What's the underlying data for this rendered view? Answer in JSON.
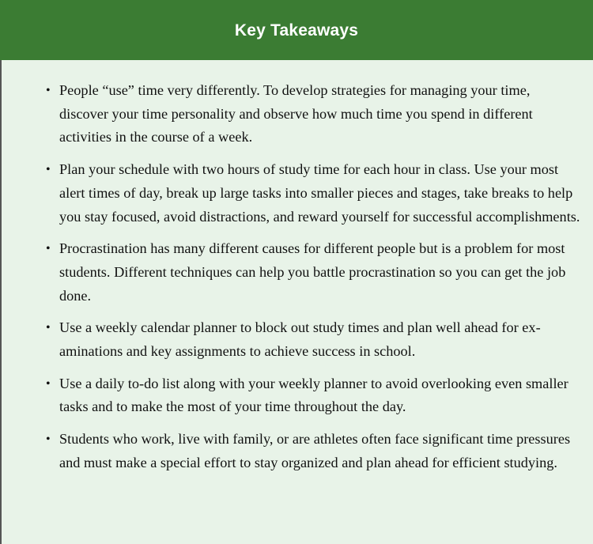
{
  "header": {
    "title": "Key Takeaways"
  },
  "takeaways": [
    "People “use” time very differently. To develop strategies for managing your time, discover your time personality and observe how much time you spend in different activities in the course of a week.",
    "Plan your schedule with two hours of study time for each hour in class. Use your most alert times of day, break up large tasks into smaller pieces and stages, take breaks to help you stay focused, avoid distractions, and reward yourself for suc­cessful accomplishments.",
    "Procrastination has many different causes for different people but is a problem for most students. Different techniques can help you battle procrastination so you can get the job done.",
    "Use a weekly calendar planner to block out study times and plan well ahead for ex­aminations and key assignments to achieve success in school.",
    "Use a daily to-do list along with your weekly planner to avoid overlooking even smaller tasks and to make the most of your time throughout the day.",
    "Students who work, live with family, or are athletes often face significant time pressures and must make a special effort to stay organized and plan ahead for effi­cient studying."
  ],
  "colors": {
    "header_bg": "#3b7c33",
    "body_bg": "#e8f3e8"
  }
}
